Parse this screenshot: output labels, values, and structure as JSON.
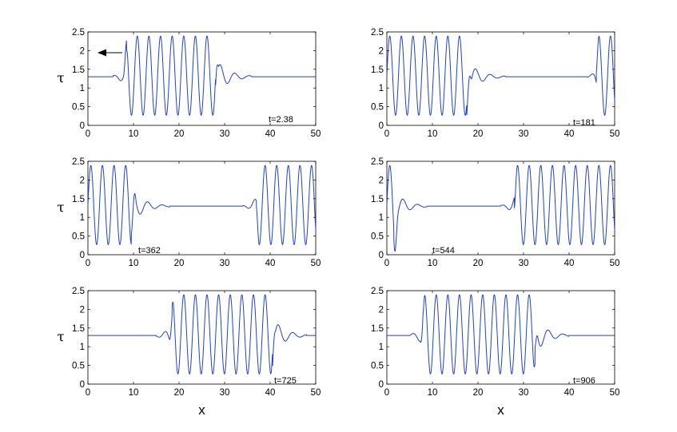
{
  "figure": {
    "colors": {
      "line": "#1f3fdb",
      "axes": "#000000",
      "background": "#ffffff"
    },
    "arrow_annotation": {
      "direction": "left",
      "panel": 0
    }
  },
  "chart_data": [
    {
      "type": "line",
      "time_label": "t=2.38",
      "xlabel": "",
      "ylabel": "τ",
      "xlim": [
        0,
        50
      ],
      "ylim": [
        0,
        2.5
      ],
      "xticks": [
        0,
        10,
        20,
        30,
        40,
        50
      ],
      "yticks": [
        0,
        0.5,
        1,
        1.5,
        2,
        2.5
      ],
      "grid": false,
      "baseline": 1.3,
      "packet": {
        "x_start": 8.5,
        "x_end": 28,
        "x_ripple_end": 36,
        "x_pre_start": 5.5,
        "period": 2.55,
        "amp_max": 1.06,
        "offset": 1.33,
        "peak_x": [
          8.3,
          10.7,
          13.0,
          15.4,
          17.8,
          20.2,
          22.6,
          25.0,
          27.4
        ]
      }
    },
    {
      "type": "line",
      "time_label": "t=181",
      "xlabel": "",
      "ylabel": "",
      "xlim": [
        0,
        50
      ],
      "ylim": [
        0,
        2.5
      ],
      "xticks": [
        0,
        10,
        20,
        30,
        40,
        50
      ],
      "yticks": [
        0,
        0.5,
        1,
        1.5,
        2,
        2.5
      ],
      "grid": false,
      "baseline": 1.3,
      "packet": {
        "x_start": 0,
        "x_end": 17.5,
        "x_ripple_end": 26,
        "x_pre_start": 44,
        "wrap_start": 46,
        "period": 2.55,
        "amp_max": 1.06,
        "offset": 1.33
      }
    },
    {
      "type": "line",
      "time_label": "t=362",
      "xlabel": "",
      "ylabel": "τ",
      "xlim": [
        0,
        50
      ],
      "ylim": [
        0,
        2.5
      ],
      "xticks": [
        0,
        10,
        20,
        30,
        40,
        50
      ],
      "yticks": [
        0,
        0.5,
        1,
        1.5,
        2,
        2.5
      ],
      "grid": false,
      "baseline": 1.3,
      "packet": {
        "x_start": 0,
        "x_end": 9.5,
        "x_ripple_end": 18,
        "x_pre_start": 34,
        "wrap_start": 37,
        "period": 2.55,
        "amp_max": 1.06,
        "offset": 1.33
      }
    },
    {
      "type": "line",
      "time_label": "t=544",
      "xlabel": "",
      "ylabel": "",
      "xlim": [
        0,
        50
      ],
      "ylim": [
        0,
        2.5
      ],
      "xticks": [
        0,
        10,
        20,
        30,
        40,
        50
      ],
      "yticks": [
        0,
        0.5,
        1,
        1.5,
        2,
        2.5
      ],
      "grid": false,
      "baseline": 1.3,
      "packet": {
        "x_start": 0,
        "x_end": 1.5,
        "x_ripple_end": 9,
        "x_pre_start": 25,
        "wrap_start": 28,
        "period": 2.55,
        "amp_max": 1.06,
        "offset": 1.33
      }
    },
    {
      "type": "line",
      "time_label": "t=725",
      "xlabel": "x",
      "ylabel": "τ",
      "xlim": [
        0,
        50
      ],
      "ylim": [
        0,
        2.5
      ],
      "xticks": [
        0,
        10,
        20,
        30,
        40,
        50
      ],
      "yticks": [
        0,
        0.5,
        1,
        1.5,
        2,
        2.5
      ],
      "grid": false,
      "baseline": 1.3,
      "packet": {
        "x_start": 18.5,
        "x_end": 40.5,
        "x_ripple_end": 48,
        "x_pre_start": 15,
        "period": 2.55,
        "amp_max": 1.06,
        "offset": 1.33
      }
    },
    {
      "type": "line",
      "time_label": "t=906",
      "xlabel": "x",
      "ylabel": "",
      "xlim": [
        0,
        50
      ],
      "ylim": [
        0,
        2.5
      ],
      "xticks": [
        0,
        10,
        20,
        30,
        40,
        50
      ],
      "yticks": [
        0,
        0.5,
        1,
        1.5,
        2,
        2.5
      ],
      "grid": false,
      "baseline": 1.3,
      "packet": {
        "x_start": 8,
        "x_end": 32.5,
        "x_ripple_end": 40,
        "x_pre_start": 5,
        "period": 2.55,
        "amp_max": 1.06,
        "offset": 1.33
      }
    }
  ]
}
